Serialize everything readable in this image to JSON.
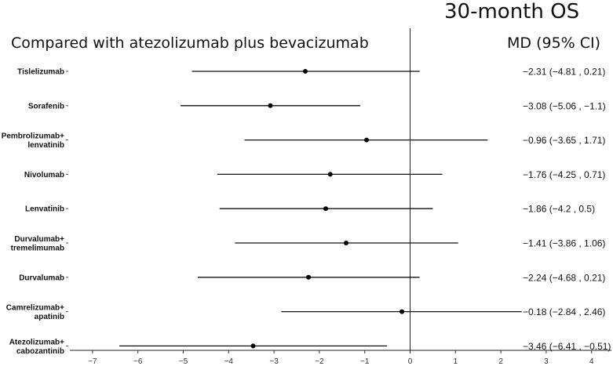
{
  "title": "30-month OS",
  "subtitle": "Compared with atezolizumab plus bevacizumab",
  "ci_header": "MD (95% CI)",
  "chart_data": {
    "type": "forest",
    "xlim": [
      -7.5,
      4.5
    ],
    "reference_line": 0,
    "x_ticks": [
      -7,
      -6,
      -5,
      -4,
      -3,
      -2,
      -1,
      0,
      1,
      2,
      3,
      4
    ],
    "x_tick_labels": [
      "−7",
      "−6",
      "−5",
      "−4",
      "−3",
      "−2",
      "−1",
      "0",
      "1",
      "2",
      "3",
      "4"
    ],
    "rows": [
      {
        "label": [
          "Tislelizumab"
        ],
        "estimate": -2.31,
        "lower": -4.81,
        "upper": 0.21,
        "ci_text": "−2.31 (−4.81 , 0.21)"
      },
      {
        "label": [
          "Sorafenib"
        ],
        "estimate": -3.08,
        "lower": -5.06,
        "upper": -1.1,
        "ci_text": "−3.08 (−5.06 , −1.1)"
      },
      {
        "label": [
          "Pembrolizumab+",
          "lenvatinib"
        ],
        "estimate": -0.96,
        "lower": -3.65,
        "upper": 1.71,
        "ci_text": "−0.96 (−3.65 , 1.71)"
      },
      {
        "label": [
          "Nivolumab"
        ],
        "estimate": -1.76,
        "lower": -4.25,
        "upper": 0.71,
        "ci_text": "−1.76 (−4.25 , 0.71)"
      },
      {
        "label": [
          "Lenvatinib"
        ],
        "estimate": -1.86,
        "lower": -4.2,
        "upper": 0.5,
        "ci_text": "−1.86 (−4.2 , 0.5)"
      },
      {
        "label": [
          "Durvalumab+",
          "tremelimumab"
        ],
        "estimate": -1.41,
        "lower": -3.86,
        "upper": 1.06,
        "ci_text": "−1.41 (−3.86 , 1.06)"
      },
      {
        "label": [
          "Durvalumab"
        ],
        "estimate": -2.24,
        "lower": -4.68,
        "upper": 0.21,
        "ci_text": "−2.24 (−4.68 , 0.21)"
      },
      {
        "label": [
          "Camrelizumab+",
          "apatinib"
        ],
        "estimate": -0.18,
        "lower": -2.84,
        "upper": 2.46,
        "ci_text": "−0.18 (−2.84 , 2.46)"
      },
      {
        "label": [
          "Atezolizumab+",
          "cabozantinib"
        ],
        "estimate": -3.46,
        "lower": -6.41,
        "upper": -0.51,
        "ci_text": "−3.46 (−6.41 , −0.51)"
      }
    ]
  }
}
